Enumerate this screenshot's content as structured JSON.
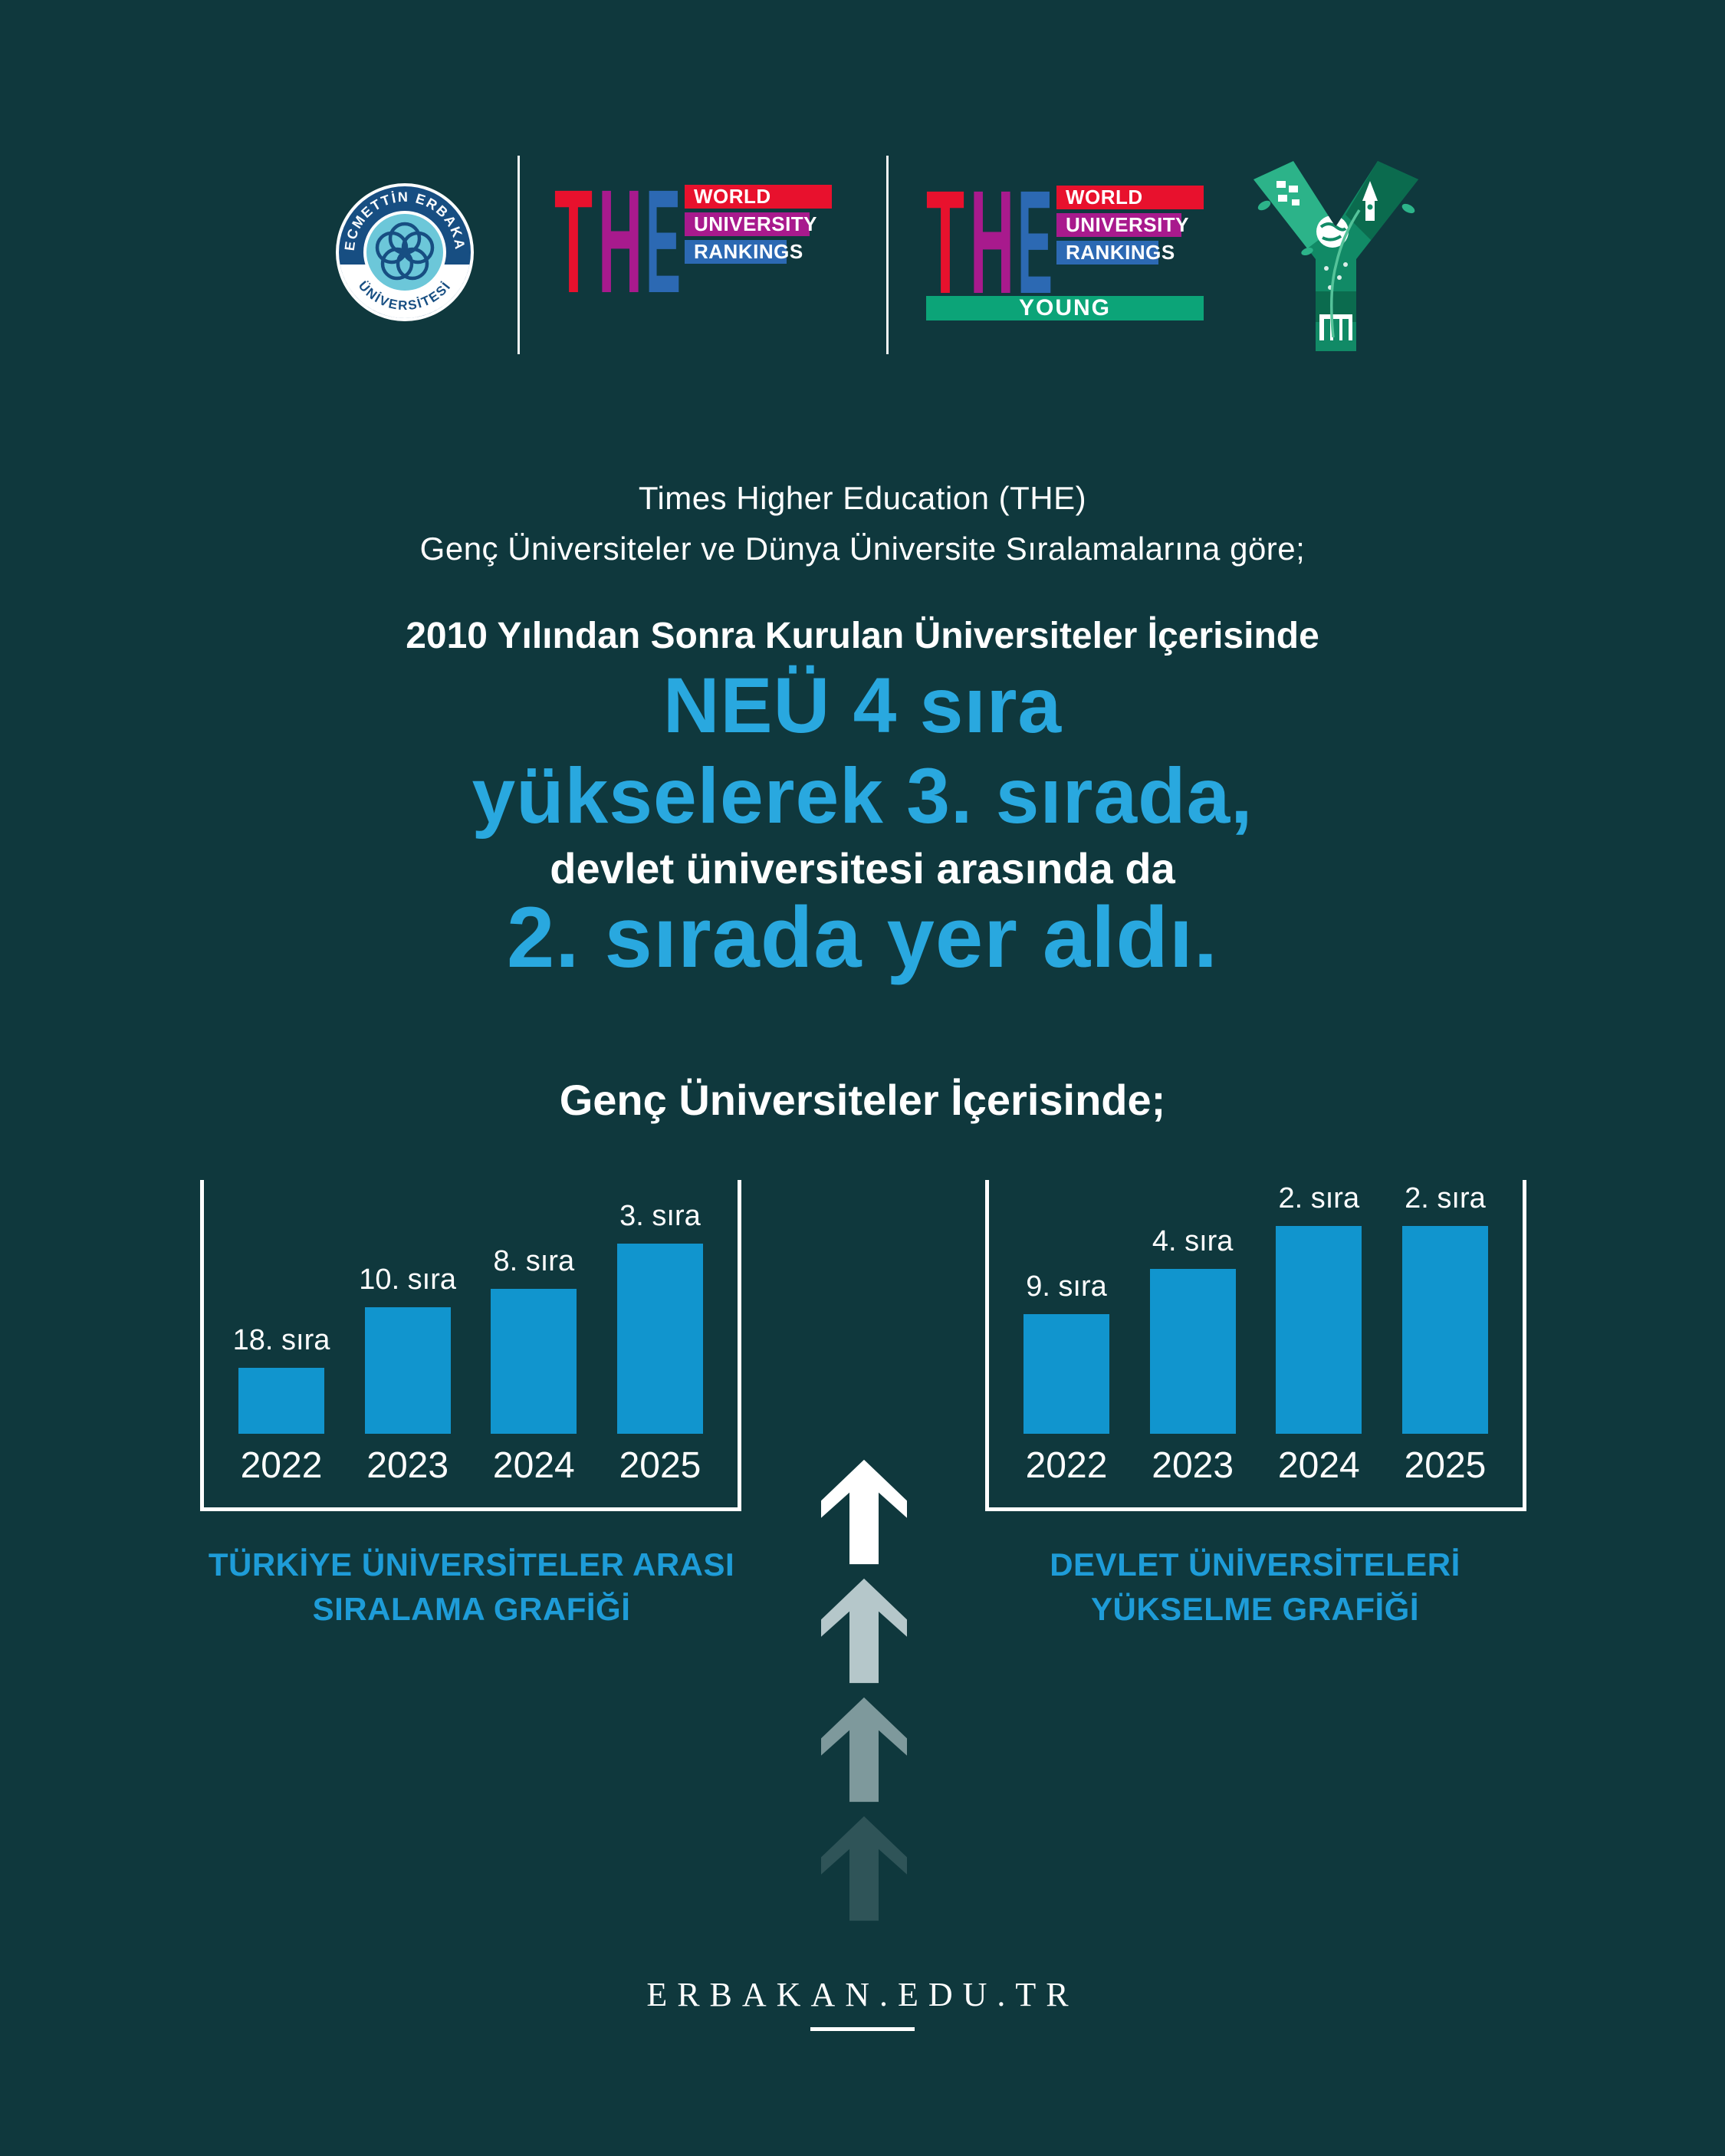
{
  "colors": {
    "background": "#0f383d",
    "accent_blue": "#29a8df",
    "caption_blue": "#1e9cd8",
    "bar_blue": "#1195ce",
    "the_red": "#e8112d",
    "the_magenta": "#a81a8d",
    "the_blue": "#2c69b3",
    "young_green": "#0ca478",
    "seal_navy": "#174e82",
    "seal_light_blue": "#6cc7d9",
    "y_graphic_green": "#118a66",
    "arrow_colors": [
      "#ffffff",
      "#b5c7ca",
      "#7e999c",
      "#2f5458"
    ]
  },
  "header": {
    "seal": {
      "top_text": "NECMETTİN ERBAKAN",
      "bottom_text": "ÜNİVERSİTESİ"
    },
    "the_world_logo": {
      "letters": [
        "T",
        "H",
        "E"
      ],
      "lines": [
        "WORLD",
        "UNIVERSITY",
        "RANKINGS"
      ]
    },
    "the_young_logo": {
      "letters": [
        "T",
        "H",
        "E"
      ],
      "lines": [
        "WORLD",
        "UNIVERSITY",
        "RANKINGS"
      ],
      "tag": "YOUNG"
    }
  },
  "intro": {
    "line1": "Times Higher Education (THE)",
    "line2": "Genç Üniversiteler ve Dünya Üniversite Sıralamalarına göre;",
    "line3": "2010 Yılından Sonra Kurulan Üniversiteler İçerisinde",
    "headline1": "NEÜ 4 sıra",
    "headline2": "yükselerek 3. sırada,",
    "line4": "devlet üniversitesi arasında da",
    "headline3": "2. sırada yer aldı.",
    "section_title": "Genç Üniversiteler İçerisinde;"
  },
  "chart_data": [
    {
      "type": "bar",
      "title": "TÜRKİYE ÜNİVERSİTELER ARASI SIRALAMA GRAFİĞİ",
      "title_lines": [
        "TÜRKİYE ÜNİVERSİTELER ARASI",
        "SIRALAMA GRAFİĞİ"
      ],
      "categories": [
        "2022",
        "2023",
        "2024",
        "2025"
      ],
      "values": [
        18,
        10,
        8,
        3
      ],
      "bar_labels": [
        "18. sıra",
        "10. sıra",
        "8. sıra",
        "3. sıra"
      ],
      "bar_heights_pct": [
        26,
        50,
        57,
        75
      ],
      "bar_color": "#1195ce",
      "legend": "none",
      "grid": "off"
    },
    {
      "type": "bar",
      "title": "DEVLET ÜNİVERSİTELERİ YÜKSELME GRAFİĞİ",
      "title_lines": [
        "DEVLET ÜNİVERSİTELERİ",
        "YÜKSELME GRAFİĞİ"
      ],
      "categories": [
        "2022",
        "2023",
        "2024",
        "2025"
      ],
      "values": [
        9,
        4,
        2,
        2
      ],
      "bar_labels": [
        "9. sıra",
        "4. sıra",
        "2. sıra",
        "2. sıra"
      ],
      "bar_heights_pct": [
        47,
        65,
        82,
        82
      ],
      "bar_color": "#1195ce",
      "legend": "none",
      "grid": "off"
    }
  ],
  "footer": {
    "website": "ERBAKAN.EDU.TR"
  }
}
